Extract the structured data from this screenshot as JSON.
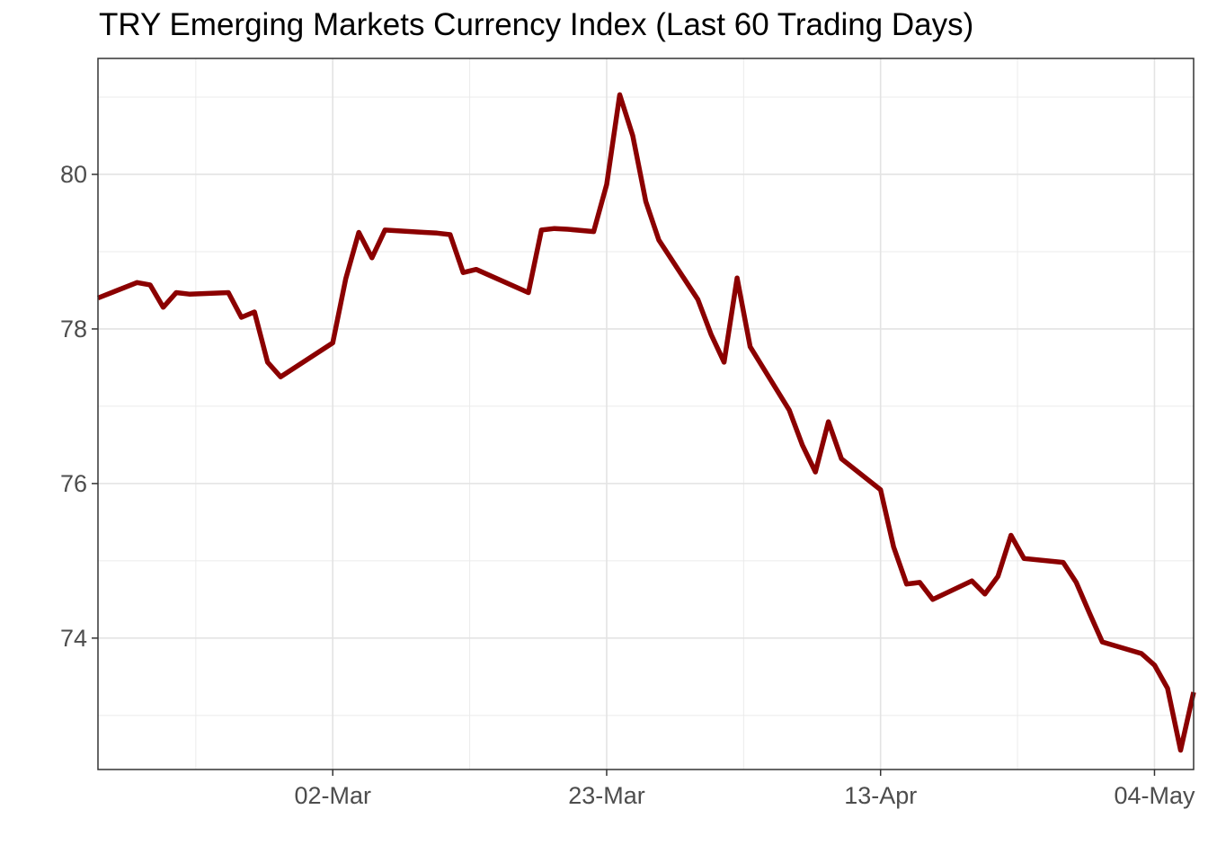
{
  "chart_data": {
    "type": "line",
    "title": "TRY Emerging Markets Currency Index (Last 60 Trading Days)",
    "xlabel": "",
    "ylabel": "",
    "x_ticks": [
      {
        "label": "02-Mar",
        "date": "2020-03-02"
      },
      {
        "label": "23-Mar",
        "date": "2020-03-23"
      },
      {
        "label": "13-Apr",
        "date": "2020-04-13"
      },
      {
        "label": "04-May",
        "date": "2020-05-04"
      }
    ],
    "y_ticks": [
      74,
      76,
      78,
      80
    ],
    "xlim": [
      "2020-02-13",
      "2020-05-07"
    ],
    "ylim": [
      72.3,
      81.5
    ],
    "grid": true,
    "line_color": "#8b0000",
    "series": [
      {
        "x": [
          "2020-02-13",
          "2020-02-16",
          "2020-02-17",
          "2020-02-18",
          "2020-02-19",
          "2020-02-20",
          "2020-02-23",
          "2020-02-24",
          "2020-02-25",
          "2020-02-26",
          "2020-02-27",
          "2020-03-02",
          "2020-03-03",
          "2020-03-04",
          "2020-03-05",
          "2020-03-06",
          "2020-03-09",
          "2020-03-10",
          "2020-03-11",
          "2020-03-12",
          "2020-03-13",
          "2020-03-17",
          "2020-03-18",
          "2020-03-19",
          "2020-03-20",
          "2020-03-22",
          "2020-03-23",
          "2020-03-24",
          "2020-03-25",
          "2020-03-26",
          "2020-03-27",
          "2020-03-30",
          "2020-03-31",
          "2020-04-01",
          "2020-04-02",
          "2020-04-03",
          "2020-04-06",
          "2020-04-07",
          "2020-04-08",
          "2020-04-09",
          "2020-04-10",
          "2020-04-13",
          "2020-04-14",
          "2020-04-15",
          "2020-04-16",
          "2020-04-17",
          "2020-04-20",
          "2020-04-21",
          "2020-04-22",
          "2020-04-23",
          "2020-04-24",
          "2020-04-27",
          "2020-04-28",
          "2020-04-29",
          "2020-04-30",
          "2020-05-03",
          "2020-05-04",
          "2020-05-05",
          "2020-05-06",
          "2020-05-07"
        ],
        "values": [
          78.4,
          78.6,
          78.57,
          78.28,
          78.47,
          78.45,
          78.47,
          78.15,
          78.22,
          77.57,
          77.38,
          77.82,
          78.65,
          79.25,
          78.92,
          79.28,
          79.25,
          79.24,
          79.22,
          78.73,
          78.77,
          78.47,
          79.28,
          79.3,
          79.29,
          79.26,
          79.87,
          81.03,
          80.5,
          79.65,
          79.15,
          78.38,
          77.93,
          77.57,
          78.66,
          77.77,
          76.95,
          76.5,
          76.15,
          76.8,
          76.32,
          75.92,
          75.18,
          74.7,
          74.72,
          74.5,
          74.74,
          74.57,
          74.8,
          75.33,
          75.03,
          74.98,
          74.72,
          74.33,
          73.95,
          73.8,
          73.65,
          73.35,
          72.55,
          73.3
        ]
      }
    ]
  }
}
